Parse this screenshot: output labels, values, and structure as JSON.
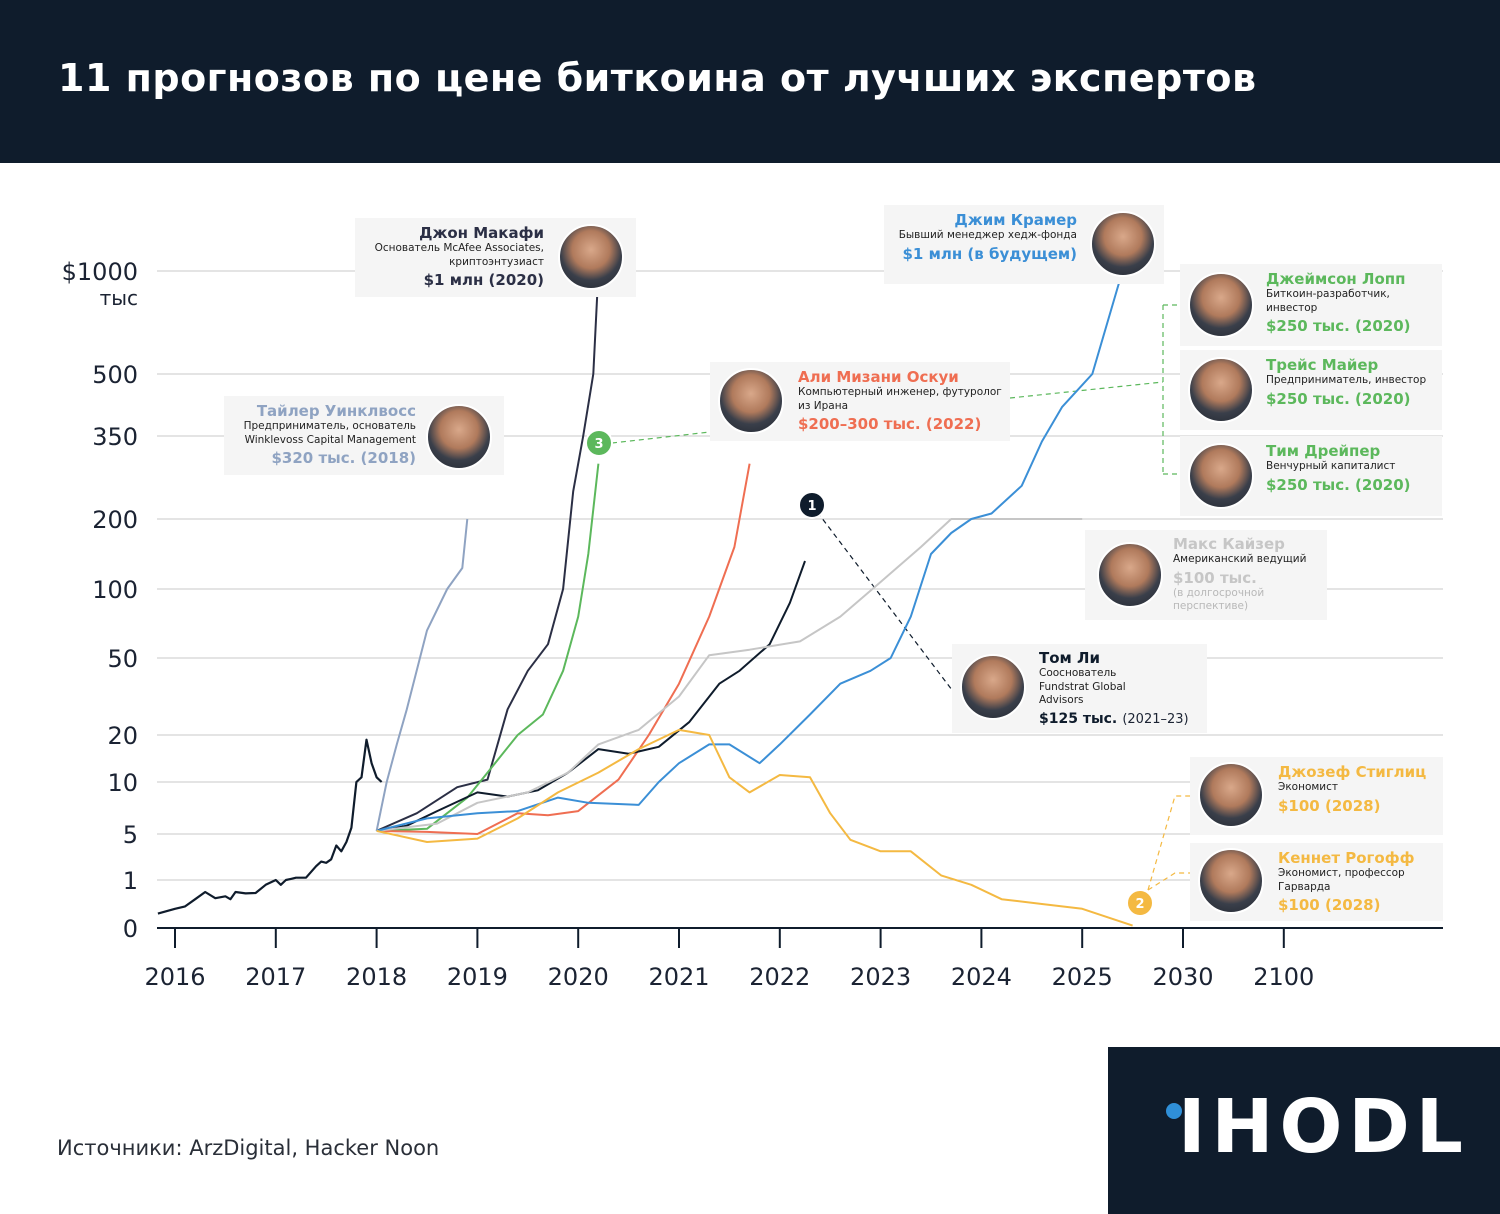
{
  "title": "11 прогнозов по цене биткоина от лучших экспертов",
  "source": "Источники: ArzDigital, Hacker Noon",
  "logo": "IHODL",
  "colors": {
    "header_bg": "#0f1c2c",
    "grid": "#c9c9c9",
    "bitcoin": "#0f1c2c",
    "mcafee": "#2b2f45",
    "winklevoss": "#8fa3c2",
    "draper_lopp_mayer": "#5cb85c",
    "oskui": "#ef6e52",
    "tom_lee": "#0f1c2c",
    "keiser": "#c6c6c6",
    "cramer": "#3b8fd6",
    "stiglitz_rogoff": "#f4b942"
  },
  "chart_data": {
    "type": "line",
    "title": "11 прогнозов по цене биткоина от лучших экспертов",
    "y_scale": "custom non-linear (тыс. $)",
    "y_ticks": [
      "$1000",
      "500",
      "350",
      "200",
      "100",
      "50",
      "20",
      "10",
      "5",
      "1",
      "0"
    ],
    "y_top_unit": "тыс",
    "x_ticks": [
      "2016",
      "2017",
      "2018",
      "2019",
      "2020",
      "2021",
      "2022",
      "2023",
      "2024",
      "2025",
      "2030",
      "2100"
    ],
    "grid": true,
    "series": [
      {
        "key": "bitcoin",
        "color": "#0f1c2c",
        "points": [
          [
            2015.83,
            0.3
          ],
          [
            2016.0,
            0.4
          ],
          [
            2016.1,
            0.45
          ],
          [
            2016.2,
            0.6
          ],
          [
            2016.3,
            0.75
          ],
          [
            2016.4,
            0.62
          ],
          [
            2016.5,
            0.66
          ],
          [
            2016.55,
            0.6
          ],
          [
            2016.6,
            0.75
          ],
          [
            2016.7,
            0.72
          ],
          [
            2016.8,
            0.73
          ],
          [
            2016.9,
            0.9
          ],
          [
            2017.0,
            1.0
          ],
          [
            2017.05,
            0.9
          ],
          [
            2017.1,
            1.0
          ],
          [
            2017.15,
            1.1
          ],
          [
            2017.2,
            1.2
          ],
          [
            2017.3,
            1.2
          ],
          [
            2017.4,
            2.2
          ],
          [
            2017.45,
            2.6
          ],
          [
            2017.5,
            2.5
          ],
          [
            2017.55,
            2.8
          ],
          [
            2017.6,
            4.0
          ],
          [
            2017.65,
            3.5
          ],
          [
            2017.7,
            4.3
          ],
          [
            2017.75,
            5.6
          ],
          [
            2017.8,
            10.0
          ],
          [
            2017.85,
            11.0
          ],
          [
            2017.9,
            19.0
          ],
          [
            2017.95,
            14.0
          ],
          [
            2018.0,
            11.0
          ],
          [
            2018.05,
            10.0
          ]
        ]
      },
      {
        "key": "mcafee",
        "color": "#2b2f45",
        "points": [
          [
            2018.0,
            5.3
          ],
          [
            2018.4,
            7.0
          ],
          [
            2018.8,
            9.5
          ],
          [
            2019.1,
            10.5
          ],
          [
            2019.3,
            30.0
          ],
          [
            2019.5,
            45.0
          ],
          [
            2019.7,
            60.0
          ],
          [
            2019.85,
            100.0
          ],
          [
            2019.95,
            250.0
          ],
          [
            2020.05,
            350.0
          ],
          [
            2020.15,
            500.0
          ],
          [
            2020.2,
            1000.0
          ]
        ]
      },
      {
        "key": "winklevoss",
        "color": "#8fa3c2",
        "points": [
          [
            2018.0,
            5.3
          ],
          [
            2018.1,
            10.0
          ],
          [
            2018.2,
            18.0
          ],
          [
            2018.3,
            30.0
          ],
          [
            2018.5,
            70.0
          ],
          [
            2018.7,
            100.0
          ],
          [
            2018.85,
            130.0
          ],
          [
            2018.9,
            200.0
          ]
        ]
      },
      {
        "key": "draper_lopp_mayer",
        "color": "#5cb85c",
        "points": [
          [
            2018.0,
            5.3
          ],
          [
            2018.5,
            5.5
          ],
          [
            2018.9,
            8.5
          ],
          [
            2019.1,
            12.0
          ],
          [
            2019.4,
            20.0
          ],
          [
            2019.65,
            28.0
          ],
          [
            2019.85,
            45.0
          ],
          [
            2020.0,
            80.0
          ],
          [
            2020.1,
            150.0
          ],
          [
            2020.2,
            300.0
          ]
        ]
      },
      {
        "key": "oskui",
        "color": "#ef6e52",
        "points": [
          [
            2018.0,
            5.3
          ],
          [
            2018.5,
            5.2
          ],
          [
            2019.0,
            5.0
          ],
          [
            2019.4,
            7.0
          ],
          [
            2019.7,
            6.8
          ],
          [
            2020.0,
            7.2
          ],
          [
            2020.4,
            10.5
          ],
          [
            2020.7,
            20.0
          ],
          [
            2021.0,
            40.0
          ],
          [
            2021.3,
            80.0
          ],
          [
            2021.55,
            160.0
          ],
          [
            2021.7,
            300.0
          ]
        ]
      },
      {
        "key": "tom_lee",
        "color": "#0f1c2c",
        "points": [
          [
            2018.0,
            5.3
          ],
          [
            2018.3,
            5.8
          ],
          [
            2018.6,
            7.2
          ],
          [
            2019.0,
            9.0
          ],
          [
            2019.3,
            8.6
          ],
          [
            2019.6,
            9.2
          ],
          [
            2019.9,
            12.0
          ],
          [
            2020.2,
            17.0
          ],
          [
            2020.5,
            16.0
          ],
          [
            2020.8,
            17.5
          ],
          [
            2021.1,
            25.0
          ],
          [
            2021.4,
            40.0
          ],
          [
            2021.6,
            45.0
          ],
          [
            2021.9,
            60.0
          ],
          [
            2022.1,
            90.0
          ],
          [
            2022.25,
            140.0
          ]
        ]
      },
      {
        "key": "keiser",
        "color": "#c6c6c6",
        "points": [
          [
            2018.0,
            5.3
          ],
          [
            2018.6,
            6.0
          ],
          [
            2019.0,
            8.0
          ],
          [
            2019.5,
            9.0
          ],
          [
            2019.9,
            12.0
          ],
          [
            2020.2,
            18.0
          ],
          [
            2020.6,
            22.0
          ],
          [
            2021.0,
            35.0
          ],
          [
            2021.3,
            52.0
          ],
          [
            2021.7,
            56.0
          ],
          [
            2022.2,
            62.0
          ],
          [
            2022.6,
            80.0
          ],
          [
            2023.0,
            110.0
          ],
          [
            2023.4,
            160.0
          ],
          [
            2023.7,
            200.0
          ],
          [
            2025.0,
            200.0
          ]
        ]
      },
      {
        "key": "cramer",
        "color": "#3b8fd6",
        "points": [
          [
            2018.0,
            5.3
          ],
          [
            2018.5,
            6.5
          ],
          [
            2019.0,
            7.0
          ],
          [
            2019.4,
            7.2
          ],
          [
            2019.8,
            8.5
          ],
          [
            2020.1,
            8.0
          ],
          [
            2020.6,
            7.8
          ],
          [
            2020.8,
            10.0
          ],
          [
            2021.0,
            14.0
          ],
          [
            2021.3,
            18.0
          ],
          [
            2021.5,
            18.0
          ],
          [
            2021.8,
            14.0
          ],
          [
            2022.0,
            18.0
          ],
          [
            2022.3,
            28.0
          ],
          [
            2022.6,
            40.0
          ],
          [
            2022.9,
            45.0
          ],
          [
            2023.1,
            50.0
          ],
          [
            2023.3,
            80.0
          ],
          [
            2023.5,
            150.0
          ],
          [
            2023.7,
            180.0
          ],
          [
            2023.9,
            200.0
          ],
          [
            2024.1,
            210.0
          ],
          [
            2024.4,
            260.0
          ],
          [
            2024.6,
            340.0
          ],
          [
            2024.8,
            420.0
          ],
          [
            2025.1,
            500.0
          ],
          [
            2025.4,
            1000.0
          ]
        ]
      },
      {
        "key": "stiglitz_rogoff",
        "color": "#f4b942",
        "points": [
          [
            2018.0,
            5.3
          ],
          [
            2018.5,
            4.3
          ],
          [
            2019.0,
            4.6
          ],
          [
            2019.4,
            6.5
          ],
          [
            2019.8,
            9.0
          ],
          [
            2020.2,
            12.0
          ],
          [
            2020.6,
            17.0
          ],
          [
            2021.0,
            22.0
          ],
          [
            2021.3,
            20.0
          ],
          [
            2021.5,
            11.0
          ],
          [
            2021.7,
            9.0
          ],
          [
            2022.0,
            11.5
          ],
          [
            2022.3,
            11.0
          ],
          [
            2022.5,
            7.0
          ],
          [
            2022.7,
            4.5
          ],
          [
            2023.0,
            3.5
          ],
          [
            2023.3,
            3.5
          ],
          [
            2023.6,
            1.4
          ],
          [
            2023.9,
            0.9
          ],
          [
            2024.2,
            0.6
          ],
          [
            2024.6,
            0.5
          ],
          [
            2025.0,
            0.4
          ],
          [
            2025.5,
            0.05
          ]
        ]
      }
    ],
    "badges": [
      {
        "label": "1",
        "color": "#0f1c2c"
      },
      {
        "label": "2",
        "color": "#f4b942"
      },
      {
        "label": "3",
        "color": "#5cb85c"
      }
    ]
  },
  "experts": {
    "mcafee": {
      "name": "Джон Макафи",
      "role": "Основатель McAfee Associates, криптоэнтузиаст",
      "prediction": "$1 млн (2020)"
    },
    "cramer": {
      "name": "Джим Крамер",
      "role": "Бывший менеджер хедж-фонда",
      "prediction": "$1 млн (в будущем)"
    },
    "winklevoss": {
      "name": "Тайлер Уинклвосс",
      "role": "Предприниматель, основатель Winklevoss Capital Management",
      "prediction": "$320 тыс. (2018)"
    },
    "oskui": {
      "name": "Али Мизани Оскуи",
      "role": "Компьютерный инженер, футуролог из Ирана",
      "prediction": "$200–300 тыс. (2022)"
    },
    "lopp": {
      "name": "Джеймсон Лопп",
      "role": "Биткоин-разработчик, инвестор",
      "prediction": "$250 тыс. (2020)"
    },
    "mayer": {
      "name": "Трейс Майер",
      "role": "Предприниматель, инвестор",
      "prediction": "$250 тыс. (2020)"
    },
    "draper": {
      "name": "Тим Дрейпер",
      "role": "Венчурный капиталист",
      "prediction": "$250 тыс. (2020)"
    },
    "keiser": {
      "name": "Макс Кайзер",
      "role": "Американский ведущий",
      "prediction": "$100 тыс.",
      "note": "(в долгосрочной перспективе)"
    },
    "lee": {
      "name": "Том Ли",
      "role": "Сооснователь Fundstrat Global Advisors",
      "prediction": "$125 тыс.",
      "period": "(2021–23)"
    },
    "stiglitz": {
      "name": "Джозеф Стиглиц",
      "role": "Экономист",
      "prediction": "$100 (2028)"
    },
    "rogoff": {
      "name": "Кеннет Рогофф",
      "role": "Экономист, профессор Гарварда",
      "prediction": "$100 (2028)"
    }
  }
}
